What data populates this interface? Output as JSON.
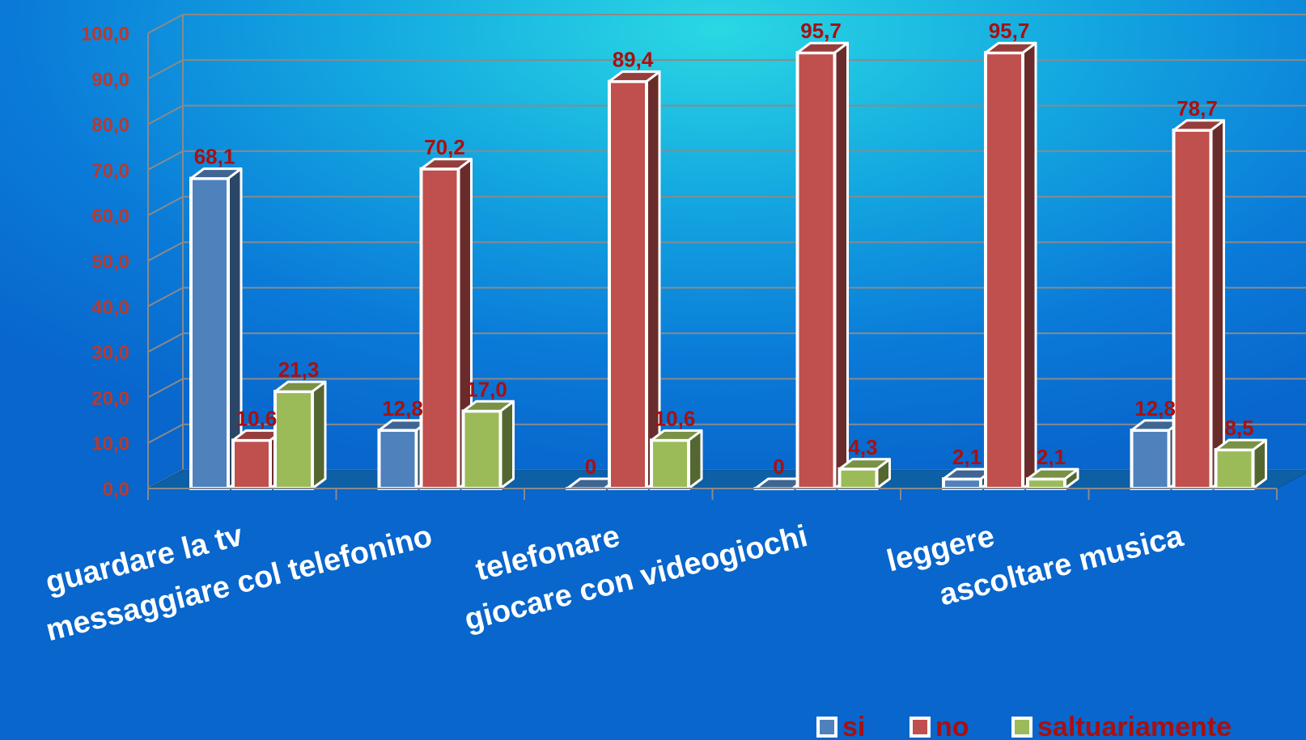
{
  "chart_data": {
    "type": "bar",
    "categories": [
      "guardare la tv",
      "messaggiare col telefonino",
      "telefonare",
      "giocare con videogiochi",
      "leggere",
      "ascoltare musica"
    ],
    "series": [
      {
        "name": "si",
        "color": "#4f81bd",
        "values": [
          68.1,
          12.8,
          0,
          0,
          2.1,
          12.8
        ],
        "labels": [
          "68,1",
          "12,8",
          "0",
          "0",
          "2,1",
          "12,8"
        ]
      },
      {
        "name": "no",
        "color": "#c0504d",
        "values": [
          10.6,
          70.2,
          89.4,
          95.7,
          95.7,
          78.7
        ],
        "labels": [
          "10,6",
          "70,2",
          "89,4",
          "95,7",
          "95,7",
          "78,7"
        ]
      },
      {
        "name": "saltuariamente",
        "color": "#9bbb59",
        "values": [
          21.3,
          17.0,
          10.6,
          4.3,
          2.1,
          8.5
        ],
        "labels": [
          "21,3",
          "17,0",
          "10,6",
          "4,3",
          "2,1",
          "8,5"
        ]
      }
    ],
    "yticks": [
      "0,0",
      "10,0",
      "20,0",
      "30,0",
      "40,0",
      "50,0",
      "60,0",
      "70,0",
      "80,0",
      "90,0",
      "100,0"
    ],
    "ylim": [
      0,
      100
    ],
    "grid": true,
    "legend_position": "bottom-right",
    "style": "3d-clustered-column"
  }
}
